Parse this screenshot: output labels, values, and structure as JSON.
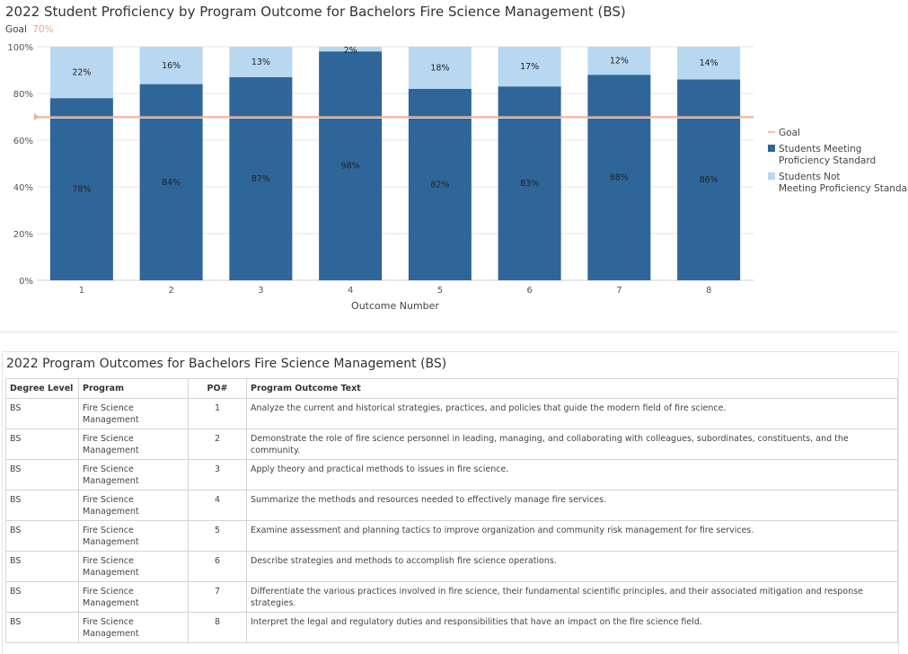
{
  "chart": {
    "title": "2022 Student Proficiency by Program Outcome for Bachelors Fire Science Management (BS)",
    "goal_label": "Goal",
    "goal_value_label": "70%"
  },
  "chart_data": {
    "type": "bar",
    "stacked": true,
    "title": "2022 Student Proficiency by Program Outcome for Bachelors Fire Science Management (BS)",
    "xlabel": "Outcome Number",
    "ylabel": "",
    "categories": [
      "1",
      "2",
      "3",
      "4",
      "5",
      "6",
      "7",
      "8"
    ],
    "ylim": [
      0,
      100
    ],
    "yticks": [
      "0%",
      "20%",
      "40%",
      "60%",
      "80%",
      "100%"
    ],
    "series": [
      {
        "name": "Students Meeting Proficiency Standard",
        "values": [
          78,
          84,
          87,
          98,
          82,
          83,
          88,
          86
        ],
        "labels": [
          "78%",
          "84%",
          "87%",
          "98%",
          "82%",
          "83%",
          "88%",
          "86%"
        ],
        "color": "#2f6699"
      },
      {
        "name": "Students Not Meeting Proficiency Standard",
        "values": [
          22,
          16,
          13,
          2,
          18,
          17,
          12,
          14
        ],
        "labels": [
          "22%",
          "16%",
          "13%",
          "2%",
          "18%",
          "17%",
          "12%",
          "14%"
        ],
        "color": "#b8d8f1"
      }
    ],
    "goal": {
      "name": "Goal",
      "value": 70,
      "color": "#f2a98f"
    },
    "legend": {
      "position": "right",
      "entries": [
        "Goal",
        "Students Meeting Proficiency Standard",
        "Students Not Meeting Proficiency Standard"
      ]
    },
    "grid": true
  },
  "table": {
    "title": "2022 Program Outcomes for Bachelors Fire Science Management (BS)",
    "headers": {
      "degree": "Degree Level",
      "program": "Program",
      "po": "PO#",
      "text": "Program Outcome Text"
    },
    "rows": [
      {
        "degree": "BS",
        "program": "Fire Science Management",
        "po": "1",
        "text": "Analyze the current and historical strategies, practices, and policies that guide the modern field of fire science."
      },
      {
        "degree": "BS",
        "program": "Fire Science Management",
        "po": "2",
        "text": "Demonstrate the role of fire science personnel in leading, managing, and collaborating with colleagues, subordinates, constituents, and the community."
      },
      {
        "degree": "BS",
        "program": "Fire Science Management",
        "po": "3",
        "text": "Apply theory and practical methods to issues in fire science."
      },
      {
        "degree": "BS",
        "program": "Fire Science Management",
        "po": "4",
        "text": "Summarize the methods and resources needed to effectively manage fire services."
      },
      {
        "degree": "BS",
        "program": "Fire Science Management",
        "po": "5",
        "text": "Examine assessment and planning tactics to improve organization and community risk management for fire services."
      },
      {
        "degree": "BS",
        "program": "Fire Science Management",
        "po": "6",
        "text": "Describe strategies and methods to accomplish fire science operations."
      },
      {
        "degree": "BS",
        "program": "Fire Science Management",
        "po": "7",
        "text": "Differentiate the various practices involved in fire science, their fundamental scientific principles, and their associated mitigation and response strategies."
      },
      {
        "degree": "BS",
        "program": "Fire Science Management",
        "po": "8",
        "text": "Interpret the legal and regulatory duties and responsibilities that have an impact on the fire science field."
      }
    ]
  }
}
